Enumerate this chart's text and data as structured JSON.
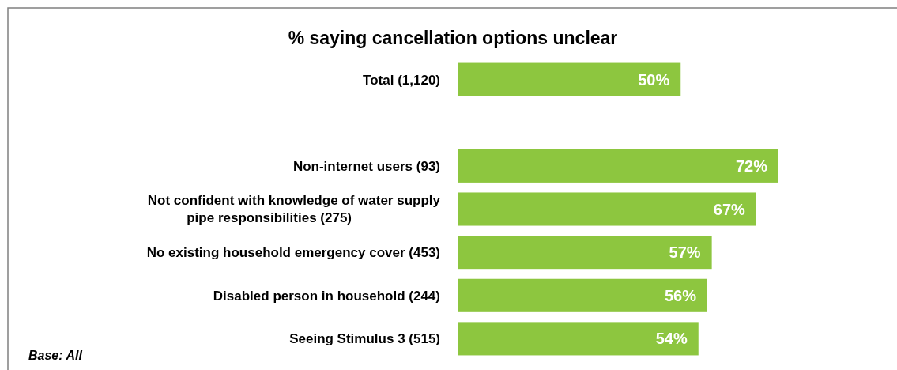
{
  "chart_data": {
    "type": "bar",
    "orientation": "horizontal",
    "title": "% saying cancellation options unclear",
    "categories": [
      "Total (1,120)",
      null,
      "Non-internet users (93)",
      "Not confident with knowledge of water supply pipe responsibilities (275)",
      "No existing household emergency cover (453)",
      "Disabled person in household (244)",
      "Seeing Stimulus 3 (515)"
    ],
    "values": [
      50,
      null,
      72,
      67,
      57,
      56,
      54
    ],
    "value_labels": [
      "50%",
      null,
      "72%",
      "67%",
      "57%",
      "56%",
      "54%"
    ],
    "color": "#8dc63f",
    "annotations": [
      "Base: All"
    ]
  }
}
